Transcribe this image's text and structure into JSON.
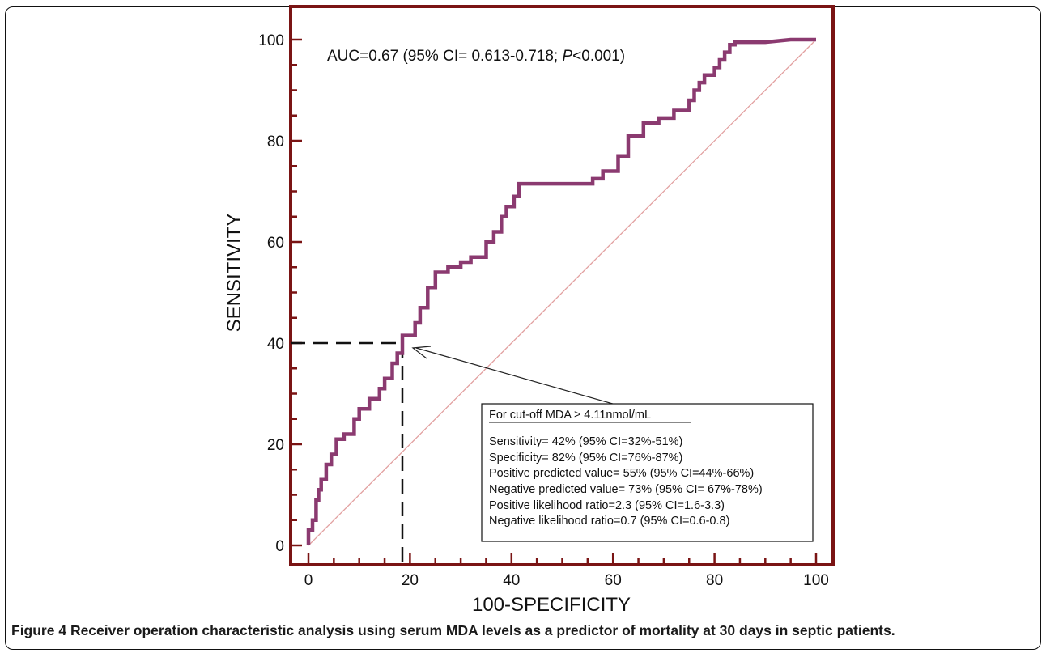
{
  "figure": {
    "caption_label": "Figure 4",
    "caption_text": " Receiver operation characteristic analysis using serum MDA levels as a predictor of mortality at 30 days in septic patients."
  },
  "chart_data": {
    "type": "line",
    "title": "",
    "xlabel": "100-SPECIFICITY",
    "ylabel": "SENSITIVITY",
    "xlim": [
      0,
      100
    ],
    "ylim": [
      0,
      100
    ],
    "x_ticks": [
      0,
      20,
      40,
      60,
      80,
      100
    ],
    "y_ticks": [
      0,
      20,
      40,
      60,
      80,
      100
    ],
    "grid": false,
    "colors": {
      "roc": "#8b3a70",
      "diagonal": "#e2a0a0",
      "frame": "#7a1414"
    },
    "annotation_auc": {
      "prefix": "AUC=0.67 (95% CI= 0.613-0.718; ",
      "italic": "P",
      "suffix": "<0.001)"
    },
    "cutoff_point": {
      "x": 18.5,
      "y": 40
    },
    "info_box": {
      "header": "For cut-off MDA ≥ 4.11nmol/mL",
      "lines": [
        "Sensitivity= 42% (95% CI=32%-51%)",
        "Specificity= 82% (95% CI=76%-87%)",
        "Positive predicted value= 55% (95% CI=44%-66%)",
        "Negative predicted value= 73% (95% CI= 67%-78%)",
        "Positive likelihood ratio=2.3 (95% CI=1.6-3.3)",
        "Negative likelihood ratio=0.7 (95% CI=0.6-0.8)"
      ]
    },
    "series": [
      {
        "x": [
          0,
          0,
          0.8,
          0.8,
          1.5,
          1.5,
          2,
          2,
          2.5,
          2.5,
          3.5,
          3.5,
          4.5,
          4.5,
          5.5,
          5.5,
          7,
          7,
          9,
          9,
          10,
          10,
          12,
          12,
          14,
          14,
          15,
          15,
          16.5,
          16.5,
          17.5,
          17.5,
          18.5,
          18.5,
          21,
          21,
          22,
          22,
          23.5,
          23.5,
          25,
          25,
          27.5,
          27.5,
          30,
          30,
          32,
          32,
          35,
          35,
          36.5,
          36.5,
          38,
          38,
          39,
          39,
          40.5,
          40.5,
          41.5,
          41.5,
          45,
          50,
          56,
          56,
          58,
          58,
          61,
          61,
          63,
          63,
          66,
          66,
          69,
          69,
          72,
          72,
          75,
          75,
          76,
          76,
          77,
          77,
          78,
          78,
          80,
          80,
          81,
          81,
          82,
          82,
          83,
          83,
          84,
          84,
          86,
          86,
          90,
          95,
          95,
          100
        ],
        "y": [
          0,
          3,
          3,
          5,
          5,
          9,
          9,
          11,
          11,
          13,
          13,
          16,
          16,
          18,
          18,
          21,
          21,
          22,
          22,
          25,
          25,
          27,
          27,
          29,
          29,
          31,
          31,
          33,
          33,
          36,
          36,
          38,
          38,
          41.5,
          41.5,
          44,
          44,
          47,
          47,
          51,
          51,
          54,
          54,
          55,
          55,
          56,
          56,
          57,
          57,
          60,
          60,
          62,
          62,
          65,
          65,
          67,
          67,
          69,
          69,
          71.5,
          71.5,
          71.5,
          71.5,
          72.5,
          72.5,
          74,
          74,
          77,
          77,
          81,
          81,
          83.5,
          83.5,
          84.5,
          84.5,
          86,
          86,
          88,
          88,
          90,
          90,
          91.5,
          91.5,
          93,
          93,
          94.5,
          94.5,
          96,
          96,
          97.5,
          97.5,
          99,
          99,
          99.5,
          99.5,
          99.5,
          99.5,
          100,
          100,
          100
        ]
      }
    ]
  }
}
